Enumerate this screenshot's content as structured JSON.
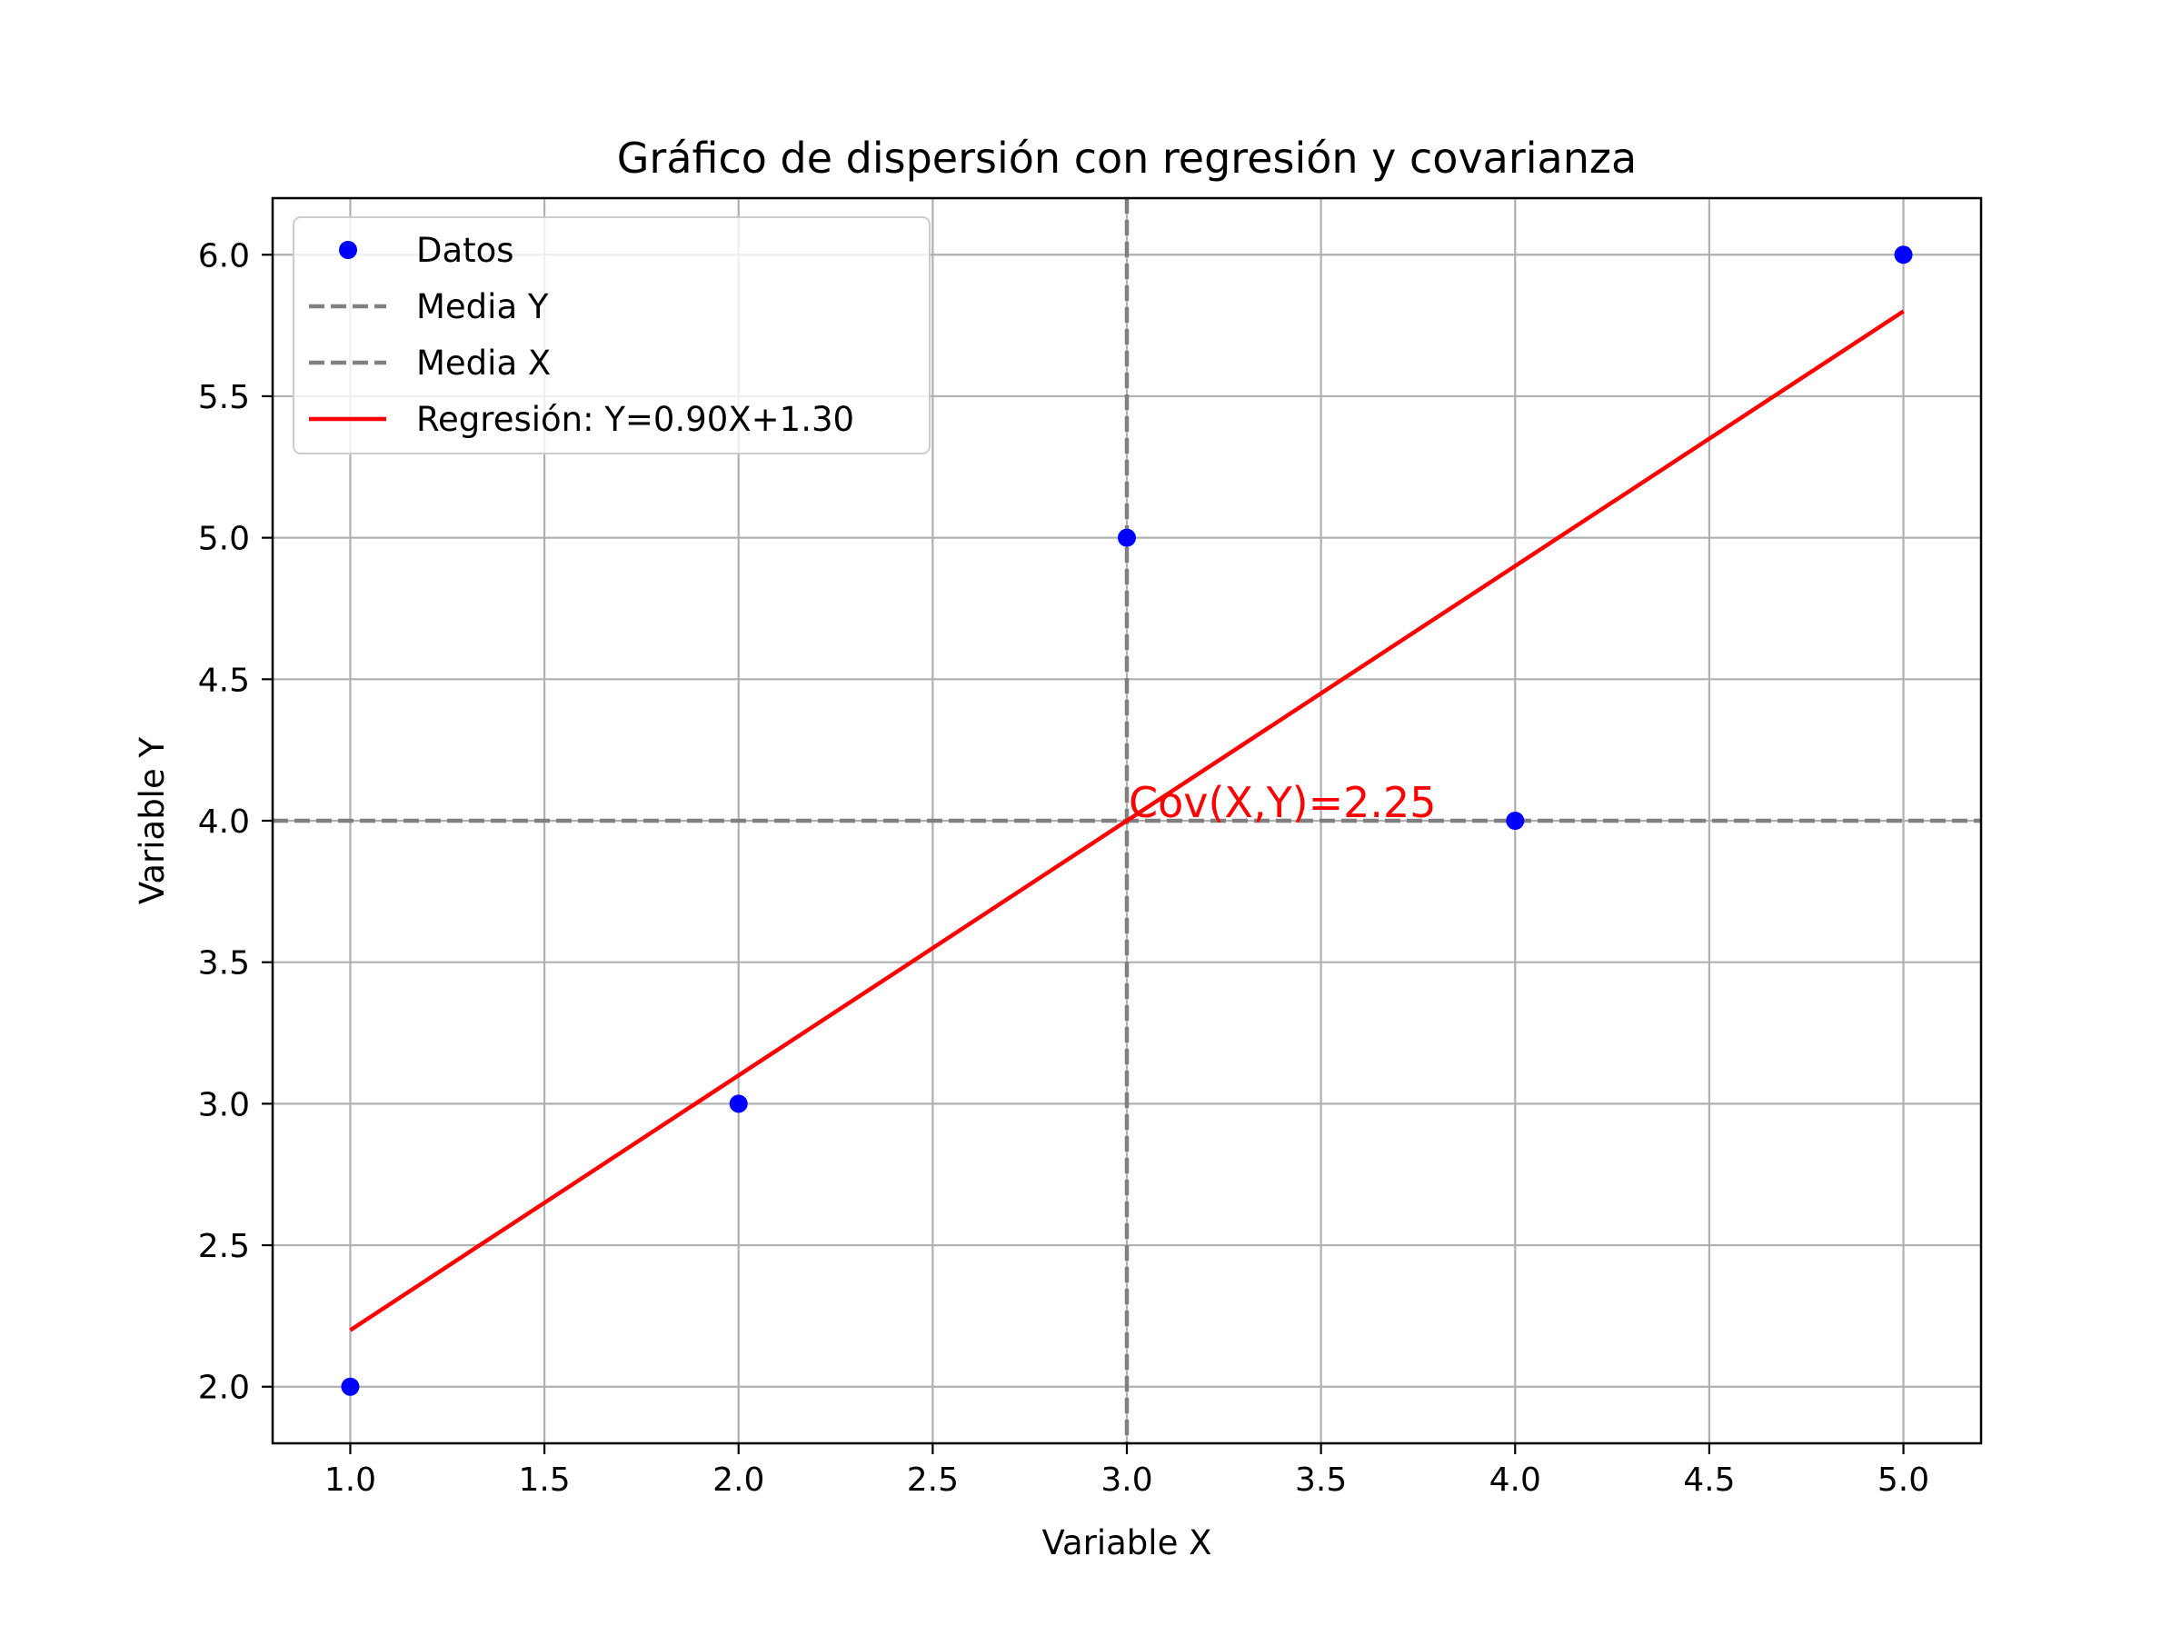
{
  "chart_data": {
    "type": "scatter",
    "title": "Gráfico de dispersión con regresión y covarianza",
    "xlabel": "Variable X",
    "ylabel": "Variable Y",
    "xlim": [
      0.8,
      5.2
    ],
    "ylim": [
      1.8,
      6.2
    ],
    "xticks": [
      1.0,
      1.5,
      2.0,
      2.5,
      3.0,
      3.5,
      4.0,
      4.5,
      5.0
    ],
    "yticks": [
      2.0,
      2.5,
      3.0,
      3.5,
      4.0,
      4.5,
      5.0,
      5.5,
      6.0
    ],
    "xtick_labels": [
      "1.0",
      "1.5",
      "2.0",
      "2.5",
      "3.0",
      "3.5",
      "4.0",
      "4.5",
      "5.0"
    ],
    "ytick_labels": [
      "2.0",
      "2.5",
      "3.0",
      "3.5",
      "4.0",
      "4.5",
      "5.0",
      "5.5",
      "6.0"
    ],
    "grid": true,
    "legend_position": "top-left",
    "series": [
      {
        "name": "Datos",
        "kind": "scatter",
        "color": "#0000ff",
        "x": [
          1,
          2,
          3,
          4,
          5
        ],
        "y": [
          2,
          3,
          5,
          4,
          6
        ]
      },
      {
        "name": "Media Y",
        "kind": "hline",
        "color": "#808080",
        "style": "dashed",
        "y": 4.0
      },
      {
        "name": "Media X",
        "kind": "vline",
        "color": "#808080",
        "style": "dashed",
        "x": 3.0
      },
      {
        "name": "Regresión: Y=0.90X+1.30",
        "kind": "line",
        "color": "#ff0000",
        "x": [
          1,
          5
        ],
        "y": [
          2.2,
          5.8
        ]
      }
    ],
    "annotations": [
      {
        "text": "Cov(X,Y)=2.25",
        "x": 3.0,
        "y": 4.0,
        "color": "#ff0000"
      }
    ]
  }
}
